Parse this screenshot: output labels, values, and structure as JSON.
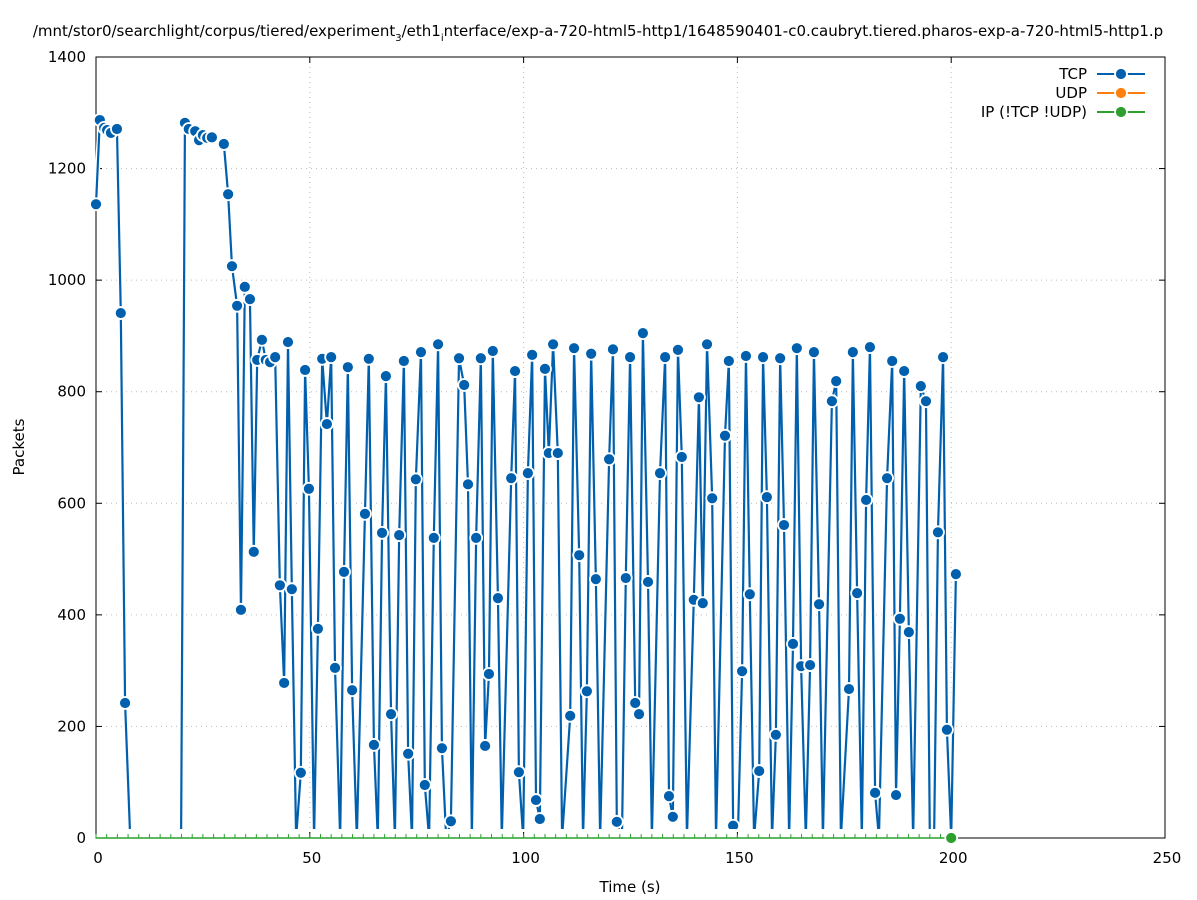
{
  "chart_data": {
    "type": "line",
    "title_parts": [
      "/mnt/stor0/searchlight/corpus/tiered/experiment",
      "3",
      "/eth1",
      "i",
      "nterface/exp-a-720-html5-http1/1648590401-c0.caubryt.tiered.pharos-exp-a-720-html5-http1.p"
    ],
    "xlabel": "Time (s)",
    "ylabel": "Packets",
    "xlim": [
      0,
      250
    ],
    "ylim": [
      0,
      1400
    ],
    "xticks": [
      0,
      50,
      100,
      150,
      200,
      250
    ],
    "yticks": [
      0,
      200,
      400,
      600,
      800,
      1000,
      1200,
      1400
    ],
    "grid": true,
    "legend_placement": "top-right",
    "series": [
      {
        "name": "TCP",
        "color": "#0060ad",
        "x": [
          0,
          0.9,
          1.9,
          2.6,
          3.5,
          4.9,
          5.8,
          6.8,
          8.0,
          19.9,
          20.8,
          21.7,
          23.2,
          24.1,
          25.0,
          26.0,
          27.1,
          29.9,
          30.9,
          31.8,
          33.0,
          33.9,
          34.8,
          36.0,
          36.9,
          37.7,
          38.8,
          39.7,
          40.7,
          41.9,
          43.0,
          44.0,
          44.9,
          45.8,
          46.8,
          47.9,
          48.9,
          49.8,
          51.0,
          51.9,
          52.9,
          54.0,
          55.0,
          55.9,
          57.1,
          58.0,
          58.9,
          59.9,
          61.0,
          62.9,
          63.8,
          65.0,
          65.9,
          66.9,
          67.8,
          69.0,
          69.9,
          70.9,
          72.0,
          73.0,
          73.9,
          74.8,
          76.0,
          76.9,
          77.9,
          79.0,
          80.0,
          80.9,
          81.9,
          83.0,
          84.9,
          86.1,
          87.0,
          87.9,
          88.9,
          90.0,
          91.0,
          91.9,
          92.8,
          94.0,
          94.9,
          97.1,
          98.0,
          98.9,
          99.9,
          101.0,
          102.0,
          102.9,
          103.8,
          105.0,
          105.9,
          106.9,
          108.0,
          109.0,
          110.9,
          111.8,
          113.0,
          113.9,
          114.8,
          115.8,
          116.9,
          117.9,
          120.0,
          120.9,
          121.8,
          123.0,
          123.9,
          124.9,
          126.1,
          127.0,
          127.9,
          129.1,
          130.0,
          131.9,
          133.1,
          134.0,
          134.9,
          136.1,
          137.0,
          138.2,
          139.8,
          141.0,
          141.9,
          142.9,
          144.1,
          145.0,
          147.1,
          148.0,
          149.0,
          150.1,
          151.1,
          152.0,
          152.9,
          153.9,
          155.1,
          156.0,
          156.9,
          158.1,
          159.0,
          160.0,
          160.9,
          162.1,
          163.0,
          163.9,
          164.9,
          166.0,
          167.0,
          167.9,
          169.1,
          170.0,
          172.1,
          173.1,
          174.2,
          176.1,
          177.0,
          178.0,
          179.1,
          180.1,
          181.0,
          182.2,
          183.1,
          185.0,
          186.2,
          187.1,
          188.0,
          189.0,
          190.1,
          191.1,
          192.9,
          194.1,
          195.0,
          196.0,
          196.9,
          198.1,
          199.0,
          200.0,
          201.1
        ],
        "y": [
          1136,
          1287,
          1273,
          1269,
          1264,
          1271,
          941,
          242,
          0,
          0,
          1282,
          1271,
          1267,
          1251,
          1260,
          1255,
          1256,
          1244,
          1154,
          1025,
          954,
          409,
          988,
          966,
          513,
          857,
          893,
          857,
          853,
          862,
          453,
          278,
          889,
          446,
          0,
          117,
          839,
          626,
          0,
          375,
          859,
          742,
          862,
          305,
          0,
          477,
          844,
          265,
          0,
          581,
          859,
          167,
          0,
          547,
          828,
          222,
          0,
          543,
          855,
          151,
          0,
          643,
          871,
          95,
          0,
          538,
          885,
          161,
          0,
          30,
          860,
          812,
          634,
          0,
          538,
          860,
          165,
          294,
          873,
          430,
          0,
          645,
          837,
          118,
          0,
          654,
          866,
          68,
          34,
          841,
          690,
          885,
          690,
          0,
          219,
          878,
          507,
          0,
          263,
          868,
          464,
          0,
          679,
          876,
          29,
          0,
          466,
          862,
          242,
          222,
          905,
          459,
          0,
          654,
          862,
          75,
          38,
          875,
          683,
          0,
          427,
          790,
          421,
          885,
          609,
          0,
          721,
          855,
          22,
          0,
          299,
          864,
          437,
          0,
          120,
          862,
          611,
          0,
          185,
          860,
          561,
          0,
          348,
          878,
          308,
          0,
          310,
          871,
          419,
          0,
          783,
          819,
          0,
          267,
          871,
          439,
          0,
          606,
          880,
          81,
          0,
          645,
          855,
          77,
          393,
          837,
          369,
          0,
          810,
          783,
          0,
          0,
          548,
          862,
          194,
          0,
          473
        ]
      },
      {
        "name": "UDP",
        "color": "#ff7f0e",
        "x": [],
        "y": []
      },
      {
        "name": "IP (!TCP  !UDP)",
        "color": "#2ca02c",
        "x": [
          0,
          200
        ],
        "y": [
          0,
          0
        ]
      }
    ]
  }
}
